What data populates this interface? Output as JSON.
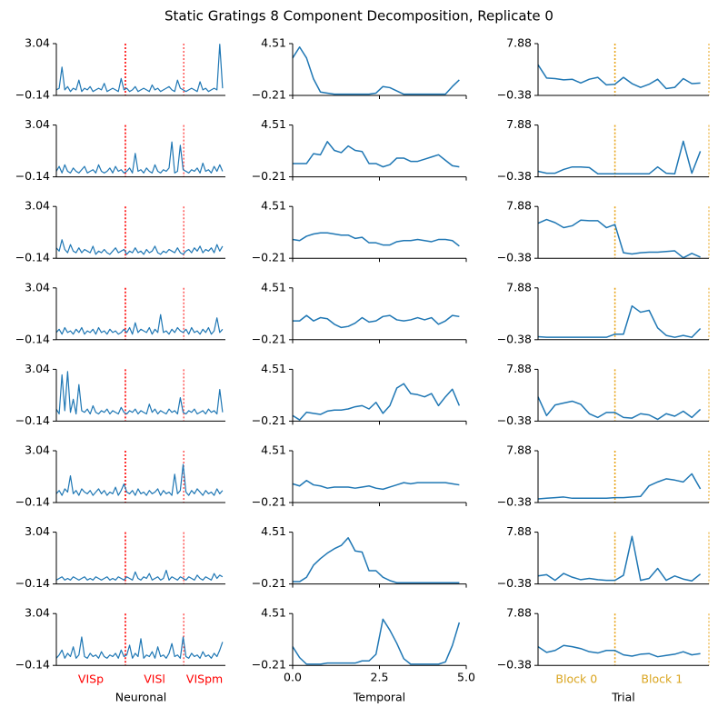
{
  "title": "Static Gratings 8 Component Decomposition, Replicate 0",
  "chart_data": [
    {
      "type": "line",
      "xlabel": "Neuronal",
      "xlim": [
        0,
        60
      ],
      "ylim": [
        -0.14,
        3.04
      ],
      "yticks": [
        {
          "value": -0.14,
          "label": "−0.14"
        },
        3.04
      ],
      "vlines": [
        24.5,
        45.2
      ],
      "vline_color": "#ff0000",
      "regions": [
        "VISp",
        "VISl",
        "VISpm"
      ],
      "region_color": "#ff0000",
      "color": "#1f77b4",
      "series": [
        {
          "values": [
            0.2,
            0.3,
            1.6,
            0.2,
            0.4,
            0.1,
            0.3,
            0.2,
            0.8,
            0.1,
            0.3,
            0.2,
            0.4,
            0.1,
            0.2,
            0.3,
            0.2,
            0.6,
            0.1,
            0.2,
            0.3,
            0.2,
            0.1,
            0.9,
            0.2,
            0.3,
            0.1,
            0.2,
            0.4,
            0.1,
            0.2,
            0.3,
            0.2,
            0.1,
            0.5,
            0.2,
            0.3,
            0.1,
            0.2,
            0.3,
            0.4,
            0.2,
            0.1,
            0.8,
            0.3,
            0.2,
            0.1,
            0.2,
            0.3,
            0.2,
            0.1,
            0.7,
            0.2,
            0.3,
            0.1,
            0.2,
            0.3,
            0.2,
            3.0,
            0.3
          ]
        },
        {
          "values": [
            0.2,
            0.5,
            0.1,
            0.6,
            0.2,
            0.1,
            0.4,
            0.2,
            0.1,
            0.3,
            0.5,
            0.1,
            0.2,
            0.3,
            0.1,
            0.6,
            0.2,
            0.1,
            0.2,
            0.4,
            0.1,
            0.5,
            0.2,
            0.3,
            0.1,
            0.2,
            0.4,
            0.1,
            1.3,
            0.2,
            0.3,
            0.1,
            0.4,
            0.2,
            0.1,
            0.6,
            0.2,
            0.1,
            0.3,
            0.2,
            0.4,
            2.0,
            0.1,
            0.2,
            1.8,
            0.3,
            0.2,
            0.1,
            0.3,
            0.2,
            0.4,
            0.1,
            0.7,
            0.2,
            0.3,
            0.1,
            0.5,
            0.2,
            0.6,
            0.2
          ]
        },
        {
          "values": [
            0.5,
            0.3,
            1.0,
            0.4,
            0.2,
            0.7,
            0.3,
            0.2,
            0.5,
            0.2,
            0.4,
            0.3,
            0.2,
            0.6,
            0.1,
            0.3,
            0.2,
            0.4,
            0.2,
            0.1,
            0.3,
            0.5,
            0.2,
            0.3,
            0.4,
            0.1,
            0.3,
            0.2,
            0.5,
            0.2,
            0.3,
            0.1,
            0.4,
            0.2,
            0.3,
            0.6,
            0.2,
            0.1,
            0.3,
            0.2,
            0.4,
            0.3,
            0.2,
            0.5,
            0.2,
            0.1,
            0.3,
            0.4,
            0.2,
            0.5,
            0.3,
            0.6,
            0.2,
            0.4,
            0.3,
            0.5,
            0.2,
            0.7,
            0.3,
            0.6
          ]
        },
        {
          "values": [
            0.3,
            0.5,
            0.2,
            0.6,
            0.3,
            0.4,
            0.2,
            0.5,
            0.3,
            0.6,
            0.2,
            0.4,
            0.3,
            0.5,
            0.2,
            0.6,
            0.3,
            0.4,
            0.2,
            0.5,
            0.3,
            0.4,
            0.2,
            0.3,
            0.5,
            0.3,
            0.6,
            0.2,
            0.9,
            0.3,
            0.5,
            0.4,
            0.3,
            0.6,
            0.2,
            0.5,
            0.3,
            1.4,
            0.3,
            0.4,
            0.2,
            0.5,
            0.3,
            0.6,
            0.4,
            0.3,
            0.5,
            0.2,
            0.6,
            0.3,
            0.4,
            0.2,
            0.5,
            0.3,
            0.6,
            0.2,
            0.4,
            1.2,
            0.3,
            0.5
          ]
        },
        {
          "values": [
            0.6,
            0.3,
            2.7,
            0.5,
            2.9,
            0.4,
            1.2,
            0.3,
            2.1,
            0.5,
            0.4,
            0.6,
            0.3,
            0.8,
            0.4,
            0.3,
            0.5,
            0.4,
            0.6,
            0.3,
            0.5,
            0.4,
            0.3,
            0.7,
            0.4,
            0.3,
            0.5,
            0.4,
            0.6,
            0.3,
            0.5,
            0.4,
            0.3,
            0.9,
            0.4,
            0.6,
            0.3,
            0.5,
            0.4,
            0.3,
            0.6,
            0.4,
            0.5,
            0.3,
            1.3,
            0.4,
            0.3,
            0.5,
            0.4,
            0.6,
            0.3,
            0.4,
            0.5,
            0.3,
            0.6,
            0.4,
            0.5,
            0.3,
            1.8,
            0.4
          ]
        },
        {
          "values": [
            0.4,
            0.6,
            0.3,
            0.7,
            0.5,
            1.5,
            0.4,
            0.6,
            0.3,
            0.7,
            0.5,
            0.4,
            0.6,
            0.3,
            0.5,
            0.7,
            0.4,
            0.6,
            0.3,
            0.5,
            0.4,
            0.8,
            0.3,
            0.6,
            1.0,
            0.5,
            0.4,
            0.6,
            0.3,
            0.7,
            0.4,
            0.5,
            0.3,
            0.6,
            0.4,
            0.5,
            0.7,
            0.3,
            0.6,
            0.4,
            0.5,
            0.3,
            1.6,
            0.4,
            0.6,
            2.2,
            0.5,
            0.3,
            0.6,
            0.4,
            0.7,
            0.5,
            0.3,
            0.6,
            0.4,
            0.5,
            0.3,
            0.7,
            0.4,
            0.6
          ]
        },
        {
          "values": [
            0.1,
            0.2,
            0.3,
            0.1,
            0.2,
            0.1,
            0.3,
            0.2,
            0.1,
            0.2,
            0.3,
            0.1,
            0.2,
            0.1,
            0.3,
            0.2,
            0.1,
            0.2,
            0.3,
            0.1,
            0.2,
            0.1,
            0.3,
            0.2,
            0.1,
            0.3,
            0.2,
            0.1,
            0.6,
            0.2,
            0.1,
            0.3,
            0.2,
            0.5,
            0.1,
            0.2,
            0.3,
            0.1,
            0.2,
            0.7,
            0.1,
            0.3,
            0.2,
            0.1,
            0.3,
            0.2,
            0.1,
            0.3,
            0.2,
            0.1,
            0.4,
            0.2,
            0.1,
            0.3,
            0.2,
            0.1,
            0.5,
            0.2,
            0.4,
            0.3
          ]
        },
        {
          "values": [
            0.3,
            0.5,
            0.8,
            0.3,
            0.6,
            0.4,
            1.0,
            0.3,
            0.5,
            1.6,
            0.4,
            0.3,
            0.6,
            0.4,
            0.5,
            0.3,
            0.7,
            0.4,
            0.3,
            0.5,
            0.4,
            0.6,
            0.3,
            0.8,
            0.4,
            0.5,
            1.1,
            0.3,
            0.6,
            0.4,
            1.5,
            0.3,
            0.5,
            0.4,
            0.7,
            0.3,
            1.0,
            0.4,
            0.5,
            0.3,
            0.6,
            1.2,
            0.4,
            0.5,
            0.3,
            1.6,
            0.4,
            0.3,
            0.6,
            0.4,
            0.5,
            0.3,
            0.7,
            0.4,
            0.5,
            0.3,
            0.6,
            0.4,
            0.8,
            1.3
          ]
        }
      ]
    },
    {
      "type": "line",
      "xlabel": "Temporal",
      "xlim": [
        0,
        5
      ],
      "x": [
        0,
        0.2,
        0.4,
        0.6,
        0.8,
        1.0,
        1.2,
        1.4,
        1.6,
        1.8,
        2.0,
        2.2,
        2.4,
        2.6,
        2.8,
        3.0,
        3.2,
        3.4,
        3.6,
        3.8,
        4.0,
        4.2,
        4.4,
        4.6,
        4.8
      ],
      "xticks": [
        {
          "value": 0,
          "label": "0.0"
        },
        2.5,
        {
          "value": 5,
          "label": "5.0"
        }
      ],
      "ylim": [
        -0.21,
        4.51
      ],
      "yticks": [
        {
          "value": -0.21,
          "label": "−0.21"
        },
        4.51
      ],
      "color": "#1f77b4",
      "series": [
        {
          "values": [
            3.2,
            4.2,
            3.2,
            1.3,
            0.1,
            0.0,
            -0.1,
            -0.1,
            -0.1,
            -0.1,
            -0.1,
            -0.1,
            0.0,
            0.6,
            0.5,
            0.2,
            -0.1,
            -0.1,
            -0.1,
            -0.1,
            -0.1,
            -0.1,
            -0.1,
            0.6,
            1.2
          ]
        },
        {
          "values": [
            1.0,
            1.0,
            1.0,
            1.9,
            1.8,
            3.0,
            2.2,
            2.0,
            2.6,
            2.2,
            2.1,
            1.0,
            1.0,
            0.7,
            0.9,
            1.5,
            1.5,
            1.2,
            1.2,
            1.4,
            1.6,
            1.8,
            1.3,
            0.8,
            0.7
          ]
        },
        {
          "values": [
            1.5,
            1.4,
            1.8,
            2.0,
            2.1,
            2.1,
            2.0,
            1.9,
            1.9,
            1.6,
            1.7,
            1.2,
            1.2,
            1.0,
            1.0,
            1.3,
            1.4,
            1.4,
            1.5,
            1.4,
            1.3,
            1.5,
            1.5,
            1.4,
            0.9
          ]
        },
        {
          "values": [
            1.5,
            1.5,
            2.0,
            1.5,
            1.8,
            1.7,
            1.2,
            0.9,
            1.0,
            1.3,
            1.8,
            1.4,
            1.5,
            1.9,
            2.0,
            1.6,
            1.5,
            1.6,
            1.8,
            1.6,
            1.8,
            1.2,
            1.5,
            2.0,
            1.9
          ]
        },
        {
          "values": [
            0.3,
            -0.1,
            0.6,
            0.5,
            0.4,
            0.7,
            0.8,
            0.8,
            0.9,
            1.1,
            1.2,
            0.9,
            1.5,
            0.5,
            1.2,
            2.8,
            3.2,
            2.3,
            2.2,
            2.0,
            2.3,
            1.2,
            2.0,
            2.7,
            1.2
          ]
        },
        {
          "values": [
            1.5,
            1.3,
            1.8,
            1.4,
            1.3,
            1.1,
            1.2,
            1.2,
            1.2,
            1.1,
            1.2,
            1.3,
            1.1,
            1.0,
            1.2,
            1.4,
            1.6,
            1.5,
            1.6,
            1.6,
            1.6,
            1.6,
            1.6,
            1.5,
            1.4
          ]
        },
        {
          "values": [
            0.0,
            0.0,
            0.4,
            1.5,
            2.1,
            2.6,
            3.0,
            3.3,
            4.0,
            2.8,
            2.7,
            1.0,
            1.0,
            0.4,
            0.1,
            -0.1,
            -0.1,
            -0.1,
            -0.1,
            -0.1,
            -0.1,
            -0.1,
            -0.1,
            -0.1,
            -0.1
          ]
        },
        {
          "values": [
            1.5,
            0.5,
            -0.1,
            -0.1,
            -0.1,
            0.0,
            0.0,
            0.0,
            0.0,
            0.0,
            0.2,
            0.2,
            0.8,
            4.0,
            3.0,
            1.8,
            0.4,
            -0.1,
            -0.1,
            -0.1,
            -0.1,
            -0.1,
            0.1,
            1.6,
            3.7
          ]
        }
      ]
    },
    {
      "type": "line",
      "xlabel": "Trial",
      "xlim": [
        0,
        20
      ],
      "ylim": [
        -0.38,
        7.88
      ],
      "yticks": [
        {
          "value": -0.38,
          "label": "−0.38"
        },
        7.88
      ],
      "vlines": [
        9,
        20
      ],
      "vline_color": "#e8a317",
      "regions": [
        "Block 0",
        "Block 1"
      ],
      "region_color": "#daa520",
      "color": "#1f77b4",
      "series": [
        {
          "values": [
            4.5,
            2.4,
            2.3,
            2.1,
            2.2,
            1.6,
            2.2,
            2.5,
            1.3,
            1.4,
            2.5,
            1.5,
            0.9,
            1.4,
            2.2,
            0.7,
            0.9,
            2.3,
            1.5,
            1.6
          ]
        },
        {
          "values": [
            0.5,
            0.2,
            0.2,
            0.8,
            1.2,
            1.2,
            1.1,
            0.1,
            0.1,
            0.1,
            0.1,
            0.1,
            0.1,
            0.1,
            1.2,
            0.2,
            0.1,
            5.3,
            0.2,
            3.7
          ]
        },
        {
          "values": [
            5.2,
            5.8,
            5.3,
            4.5,
            4.8,
            5.7,
            5.6,
            5.6,
            4.5,
            5.0,
            0.5,
            0.3,
            0.5,
            0.6,
            0.6,
            0.7,
            0.8,
            -0.3,
            0.4,
            -0.2
          ]
        },
        {
          "values": [
            0.1,
            0.0,
            0.0,
            0.0,
            0.0,
            0.0,
            0.0,
            0.0,
            0.0,
            0.5,
            0.5,
            5.0,
            4.0,
            4.3,
            1.5,
            0.3,
            0.0,
            0.3,
            0.0,
            1.4
          ]
        },
        {
          "values": [
            3.5,
            0.5,
            2.2,
            2.5,
            2.8,
            2.3,
            0.8,
            0.2,
            1.0,
            1.0,
            0.2,
            0.1,
            0.8,
            0.6,
            -0.1,
            0.8,
            0.4,
            1.2,
            0.2,
            1.5
          ]
        },
        {
          "values": [
            0.2,
            0.3,
            0.4,
            0.5,
            0.3,
            0.3,
            0.3,
            0.3,
            0.3,
            0.4,
            0.4,
            0.5,
            0.6,
            2.3,
            2.9,
            3.4,
            3.2,
            2.9,
            4.2,
            1.8
          ]
        },
        {
          "values": [
            0.9,
            1.1,
            0.2,
            1.3,
            0.7,
            0.3,
            0.5,
            0.3,
            0.2,
            0.2,
            1.0,
            7.2,
            0.2,
            0.5,
            2.1,
            0.2,
            0.9,
            0.4,
            0.1,
            1.2
          ]
        },
        {
          "values": [
            2.6,
            1.7,
            2.0,
            2.8,
            2.6,
            2.3,
            1.8,
            1.6,
            2.0,
            2.0,
            1.3,
            1.1,
            1.4,
            1.5,
            1.0,
            1.2,
            1.4,
            1.8,
            1.3,
            1.5
          ]
        }
      ]
    }
  ]
}
